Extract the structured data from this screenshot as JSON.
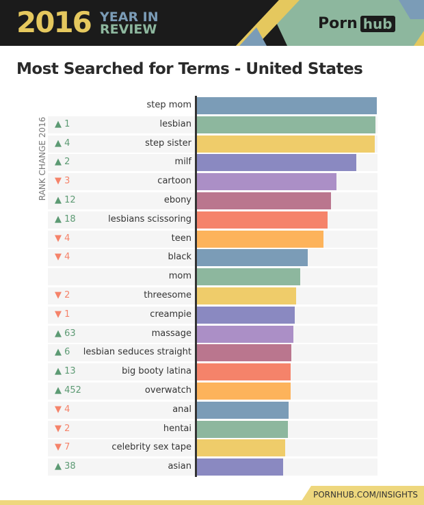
{
  "header": {
    "year": "2016",
    "line1": "YEAR IN",
    "line2": "REVIEW",
    "brand_left": "Porn",
    "brand_right": "hub"
  },
  "footer": {
    "link": "PORNHUB.COM/INSIGHTS"
  },
  "chart_data": {
    "type": "bar",
    "orientation": "horizontal",
    "title": "Most Searched for Terms - United States",
    "rank_change_label": "RANK CHANGE 2016",
    "value_unit": "relative search volume (% of top term, estimated; no axis printed)",
    "categories": [
      "step mom",
      "lesbian",
      "step sister",
      "milf",
      "cartoon",
      "ebony",
      "lesbians scissoring",
      "teen",
      "black",
      "mom",
      "threesome",
      "creampie",
      "massage",
      "lesbian seduces straight",
      "big booty latina",
      "overwatch",
      "anal",
      "hentai",
      "celebrity sex tape",
      "asian"
    ],
    "values": [
      100,
      99.2,
      98.9,
      88.6,
      77.7,
      74.6,
      72.7,
      70.5,
      61.7,
      57.6,
      55.3,
      54.5,
      53.8,
      52.7,
      52.3,
      52.3,
      51.1,
      50.8,
      49.2,
      48.1
    ],
    "rank_change": [
      {
        "dir": "",
        "text": ""
      },
      {
        "dir": "up",
        "text": "1"
      },
      {
        "dir": "up",
        "text": "4"
      },
      {
        "dir": "up",
        "text": "2"
      },
      {
        "dir": "down",
        "text": "3"
      },
      {
        "dir": "up",
        "text": "12"
      },
      {
        "dir": "up",
        "text": "18"
      },
      {
        "dir": "down",
        "text": "4"
      },
      {
        "dir": "down",
        "text": "4"
      },
      {
        "dir": "",
        "text": ""
      },
      {
        "dir": "down",
        "text": "2"
      },
      {
        "dir": "down",
        "text": "1"
      },
      {
        "dir": "up",
        "text": "63"
      },
      {
        "dir": "up",
        "text": "6"
      },
      {
        "dir": "up",
        "text": "13"
      },
      {
        "dir": "up",
        "text": "452"
      },
      {
        "dir": "down",
        "text": "4"
      },
      {
        "dir": "down",
        "text": "2"
      },
      {
        "dir": "down",
        "text": "7"
      },
      {
        "dir": "up",
        "text": "38"
      }
    ],
    "bar_colors": [
      "#7b9cb7",
      "#8db79e",
      "#efcc6a",
      "#8a89c1",
      "#ab8fc6",
      "#ba768e",
      "#f5836a",
      "#fdb35b"
    ],
    "up_color": "#5c9a73",
    "down_color": "#f5836a",
    "grid": false
  }
}
